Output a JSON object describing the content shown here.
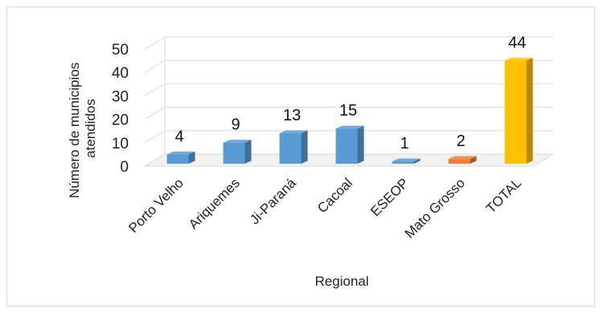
{
  "chart_data": {
    "type": "bar",
    "style": "3d-column",
    "categories": [
      "Porto Velho",
      "Ariquemes",
      "Ji-Paraná",
      "Cacoal",
      "ESEOP",
      "Mato Grosso",
      "TOTAL"
    ],
    "values": [
      4,
      9,
      13,
      15,
      1,
      2,
      44
    ],
    "bar_colors": [
      "#5b9bd5",
      "#5b9bd5",
      "#5b9bd5",
      "#5b9bd5",
      "#5b9bd5",
      "#ed7d31",
      "#ffc000"
    ],
    "title": "",
    "xlabel": "Regional",
    "ylabel_lines": [
      "Número de municipios",
      "atendidos"
    ],
    "ylim": [
      0,
      50
    ],
    "yticks": [
      0,
      10,
      20,
      30,
      40,
      50
    ],
    "grid": true,
    "legend": "none"
  }
}
